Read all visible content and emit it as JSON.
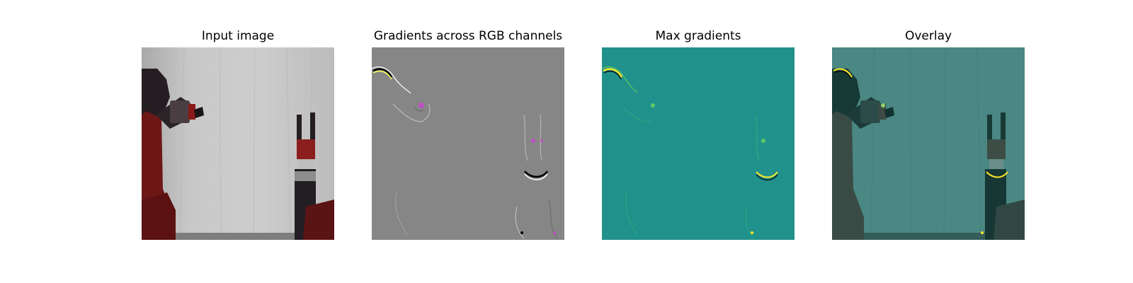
{
  "panels": [
    {
      "title": "Input image"
    },
    {
      "title": "Gradients across RGB channels"
    },
    {
      "title": "Max gradients"
    },
    {
      "title": "Overlay"
    }
  ],
  "colors": {
    "background": "#ffffff",
    "backdrop_gray": "#c9c9c9",
    "robot_red": "#7a1c1c",
    "robot_dark": "#1e1a1e",
    "gradient_gray": "#868686",
    "magenta_highlight": "#c050c0",
    "viridis_teal": "#21918c",
    "viridis_yellow": "#fde725",
    "viridis_green": "#5ec962",
    "overlay_tint": "#3f7f7b"
  }
}
